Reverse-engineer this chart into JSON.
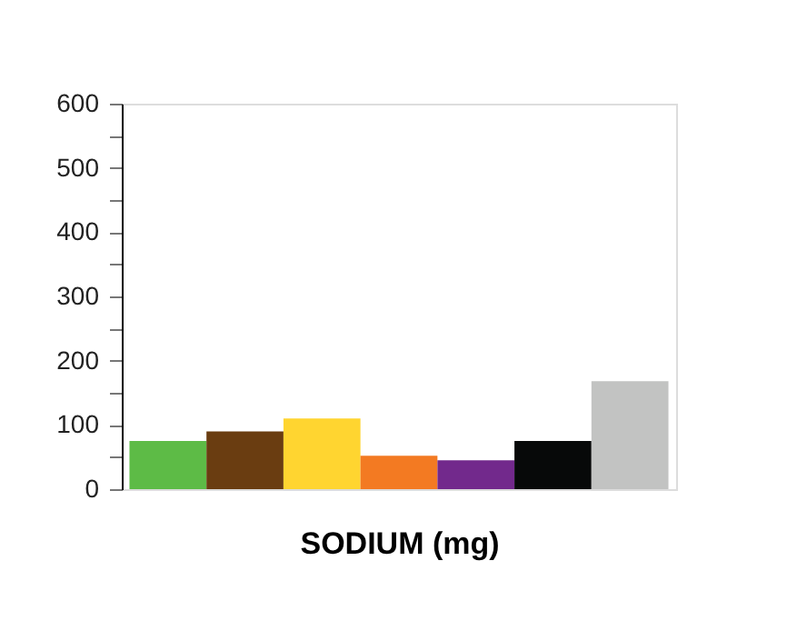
{
  "chart_data": {
    "type": "bar",
    "xlabel": "SODIUM (mg)",
    "categories": [
      null,
      null,
      null,
      null,
      null,
      null,
      null
    ],
    "values": [
      75,
      90,
      110,
      52,
      45,
      75,
      168
    ],
    "colors": [
      "#5dbb46",
      "#6a3d11",
      "#ffd530",
      "#f37a22",
      "#72298c",
      "#070909",
      "#c2c3c2"
    ],
    "ylim": [
      0,
      600
    ],
    "yticks": [
      0,
      {
        "value": 50,
        "label": null
      },
      100,
      {
        "value": 150,
        "label": null
      },
      200,
      {
        "value": 250,
        "label": null
      },
      300,
      {
        "value": 350,
        "label": null
      },
      400,
      {
        "value": 450,
        "label": null
      },
      500,
      {
        "value": 550,
        "label": null
      },
      600
    ],
    "tick_labels": "y",
    "grid": false
  }
}
